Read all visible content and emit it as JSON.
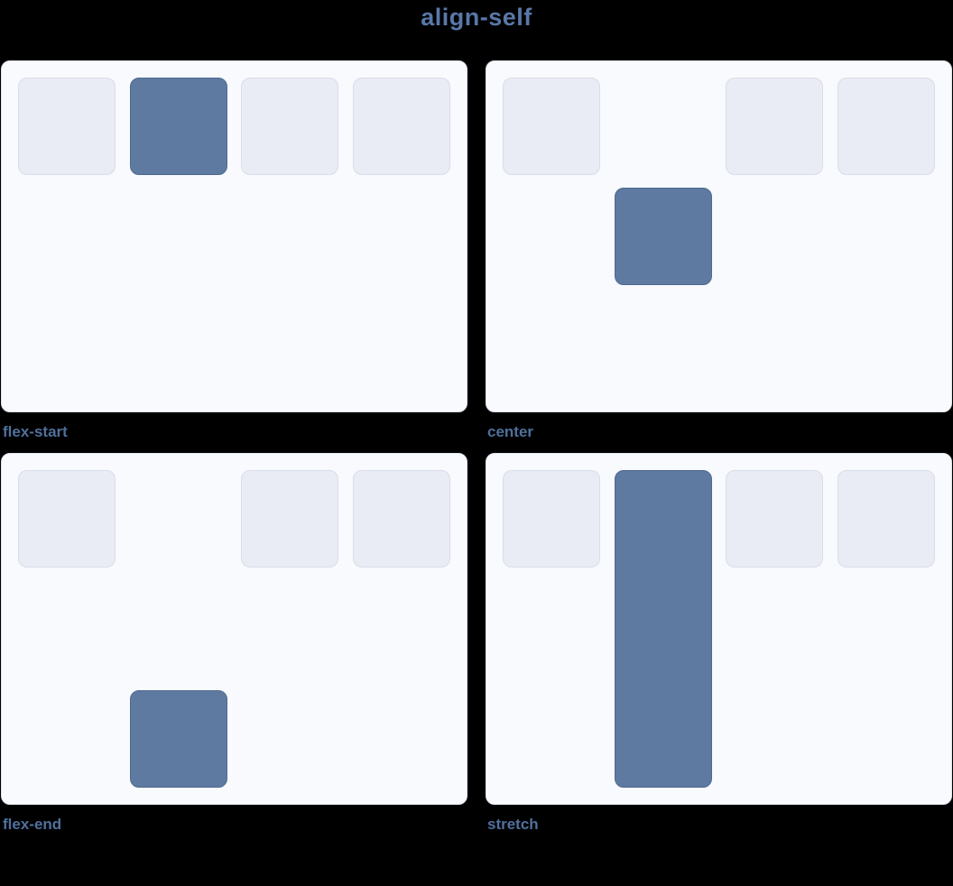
{
  "title": "align-self",
  "panels": [
    {
      "label": "flex-start",
      "align_self": "flex-start",
      "item_count": 4,
      "highlighted_item_index": 1
    },
    {
      "label": "center",
      "align_self": "center",
      "item_count": 4,
      "highlighted_item_index": 1
    },
    {
      "label": "flex-end",
      "align_self": "flex-end",
      "item_count": 4,
      "highlighted_item_index": 1
    },
    {
      "label": "stretch",
      "align_self": "stretch",
      "item_count": 4,
      "highlighted_item_index": 1
    }
  ],
  "colors": {
    "background": "#000000",
    "title_text": "#5878a8",
    "caption_text": "#50709d",
    "panel_bg": "#f9fafd",
    "panel_border": "#dfe4ee",
    "item_bg": "#e9ecf4",
    "item_border": "#d7ddeb",
    "highlight_bg": "#5e7aa1",
    "highlight_border": "#4e6a92"
  }
}
